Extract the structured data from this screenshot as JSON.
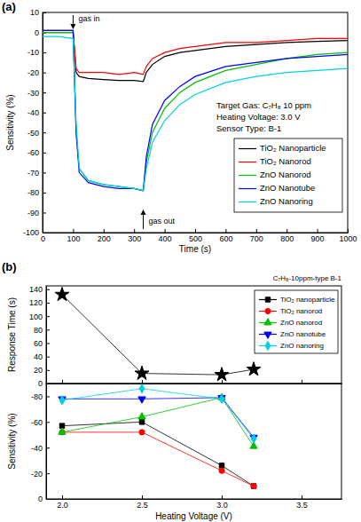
{
  "chart_data": [
    {
      "type": "line",
      "title": "(a)",
      "x_label": "Time (s)",
      "y_label": "Sensitivity (%)",
      "annotations": [
        "gas in",
        "gas out",
        "Target Gas: C₇H₈ 10 ppm",
        "Heating Voltage: 3.0 V",
        "Sensor Type: B-1"
      ],
      "x": [
        0,
        50,
        100,
        110,
        120,
        150,
        200,
        250,
        300,
        330,
        340,
        360,
        400,
        450,
        500,
        600,
        700,
        800,
        900,
        1000
      ],
      "series": [
        {
          "name": "TiO₂ Nanoparticle",
          "color": "#000000",
          "values": [
            1,
            1,
            1,
            -20,
            -22,
            -23,
            -23.5,
            -24,
            -24,
            -24.5,
            -20,
            -16,
            -12,
            -10,
            -9,
            -7,
            -6,
            -5,
            -4.5,
            -4
          ]
        },
        {
          "name": "TiO₂ Nanorod",
          "color": "#ff0000",
          "values": [
            0,
            0,
            0,
            -18,
            -20,
            -20,
            -20,
            -21,
            -20,
            -21,
            -17,
            -13,
            -10,
            -8,
            -7,
            -5,
            -5,
            -4,
            -3,
            -3
          ]
        },
        {
          "name": "ZnO Nanorod",
          "color": "#00c000",
          "values": [
            0,
            0,
            0,
            -50,
            -68,
            -74,
            -76,
            -77,
            -78,
            -79,
            -65,
            -50,
            -38,
            -30,
            -25,
            -19,
            -16,
            -13,
            -11,
            -10
          ]
        },
        {
          "name": "ZnO Nanotube",
          "color": "#0000ff",
          "values": [
            1,
            1,
            1,
            -50,
            -70,
            -75,
            -77,
            -78,
            -78,
            -79,
            -62,
            -46,
            -34,
            -27,
            -22,
            -17,
            -15,
            -13,
            -12,
            -11
          ]
        },
        {
          "name": "ZnO Nanoring",
          "color": "#00d0e0",
          "values": [
            -2,
            -2,
            -3,
            -45,
            -68,
            -74,
            -76,
            -77,
            -78,
            -79,
            -68,
            -55,
            -44,
            -36,
            -31,
            -25,
            -22,
            -20,
            -19,
            -18
          ]
        }
      ],
      "xlim": [
        0,
        1000
      ],
      "xticks": [
        0,
        100,
        200,
        300,
        400,
        500,
        600,
        700,
        800,
        900,
        1000
      ],
      "ylim": [
        -100,
        10
      ],
      "yticks": [
        -100,
        -90,
        -80,
        -70,
        -60,
        -50,
        -40,
        -30,
        -20,
        -10,
        0,
        10
      ],
      "legend": "lower right"
    },
    {
      "type": "line",
      "title": "(b)",
      "subtitle": "C₇H₈-10ppm-type B-1",
      "y_label": "Response Time (s)",
      "x": [
        2.0,
        2.5,
        3.0,
        3.2
      ],
      "series": [
        {
          "color": "#000000",
          "marker": "star",
          "values": [
            132,
            15,
            13,
            21
          ]
        }
      ],
      "xlim": [
        1.9,
        3.75
      ],
      "xticks": [
        {
          "value": 2,
          "label": "2.0"
        },
        2.5,
        {
          "value": 3,
          "label": "3.0"
        },
        3.5
      ],
      "ylim": [
        0,
        145
      ],
      "yticks": [
        0,
        20,
        40,
        60,
        80,
        100,
        120,
        140
      ],
      "tick_labels": "y"
    },
    {
      "type": "line",
      "x_label": "Heating Voltage (V)",
      "y_label": "Sensitivity (%)",
      "x": [
        2.0,
        2.5,
        3.0,
        3.2
      ],
      "series": [
        {
          "name": "TiO₂ nanoparticle",
          "color": "#000000",
          "marker": "square",
          "values": [
            -57,
            -60,
            -26,
            -10
          ]
        },
        {
          "name": "TiO₂ nanorod",
          "color": "#ff0000",
          "marker": "circle",
          "values": [
            -52,
            -52,
            -22,
            -10
          ]
        },
        {
          "name": "ZnO nanorod",
          "color": "#00c000",
          "marker": "triangle",
          "values": [
            -52,
            -64,
            -79,
            -41
          ]
        },
        {
          "name": "ZnO nanotube",
          "color": "#0000ff",
          "marker": "triangle-down",
          "values": [
            -78,
            -78,
            -79,
            -48
          ]
        },
        {
          "name": "ZnO nanoring",
          "color": "#00d0e0",
          "marker": "diamond",
          "values": [
            -77,
            -86,
            -78,
            -47
          ]
        }
      ],
      "xlim": [
        1.9,
        3.75
      ],
      "xticks": [
        {
          "value": 2,
          "label": "2.0"
        },
        2.5,
        {
          "value": 3,
          "label": "3.0"
        },
        3.5
      ],
      "ylim": [
        0,
        -90
      ],
      "yticks": [
        0,
        -20,
        -40,
        -60,
        -80
      ],
      "legend": "upper right"
    }
  ]
}
